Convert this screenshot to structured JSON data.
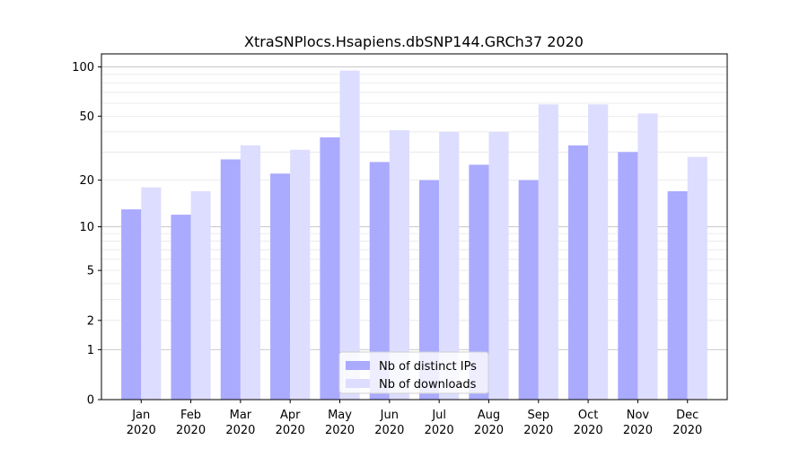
{
  "chart_data": {
    "type": "bar",
    "title": "XtraSNPlocs.Hsapiens.dbSNP144.GRCh37 2020",
    "xlabel": "",
    "ylabel": "",
    "y_scale": "log(1+y)",
    "ylim": [
      0,
      120
    ],
    "y_ticks": [
      0,
      1,
      2,
      5,
      10,
      20,
      50,
      100
    ],
    "y_tick_labels": [
      "0",
      "1",
      "2",
      "5",
      "10",
      "20",
      "50",
      "100"
    ],
    "categories": [
      {
        "month": "Jan",
        "year": "2020"
      },
      {
        "month": "Feb",
        "year": "2020"
      },
      {
        "month": "Mar",
        "year": "2020"
      },
      {
        "month": "Apr",
        "year": "2020"
      },
      {
        "month": "May",
        "year": "2020"
      },
      {
        "month": "Jun",
        "year": "2020"
      },
      {
        "month": "Jul",
        "year": "2020"
      },
      {
        "month": "Aug",
        "year": "2020"
      },
      {
        "month": "Sep",
        "year": "2020"
      },
      {
        "month": "Oct",
        "year": "2020"
      },
      {
        "month": "Nov",
        "year": "2020"
      },
      {
        "month": "Dec",
        "year": "2020"
      }
    ],
    "series": [
      {
        "name": "Nb of distinct IPs",
        "color": "#aaaaff",
        "values": [
          13,
          12,
          27,
          22,
          37,
          26,
          20,
          25,
          20,
          33,
          30,
          17
        ]
      },
      {
        "name": "Nb of downloads",
        "color": "#ddddff",
        "values": [
          18,
          17,
          33,
          31,
          95,
          41,
          40,
          40,
          59,
          59,
          52,
          28
        ]
      }
    ],
    "grid": true,
    "legend_position": "bottom-center"
  }
}
